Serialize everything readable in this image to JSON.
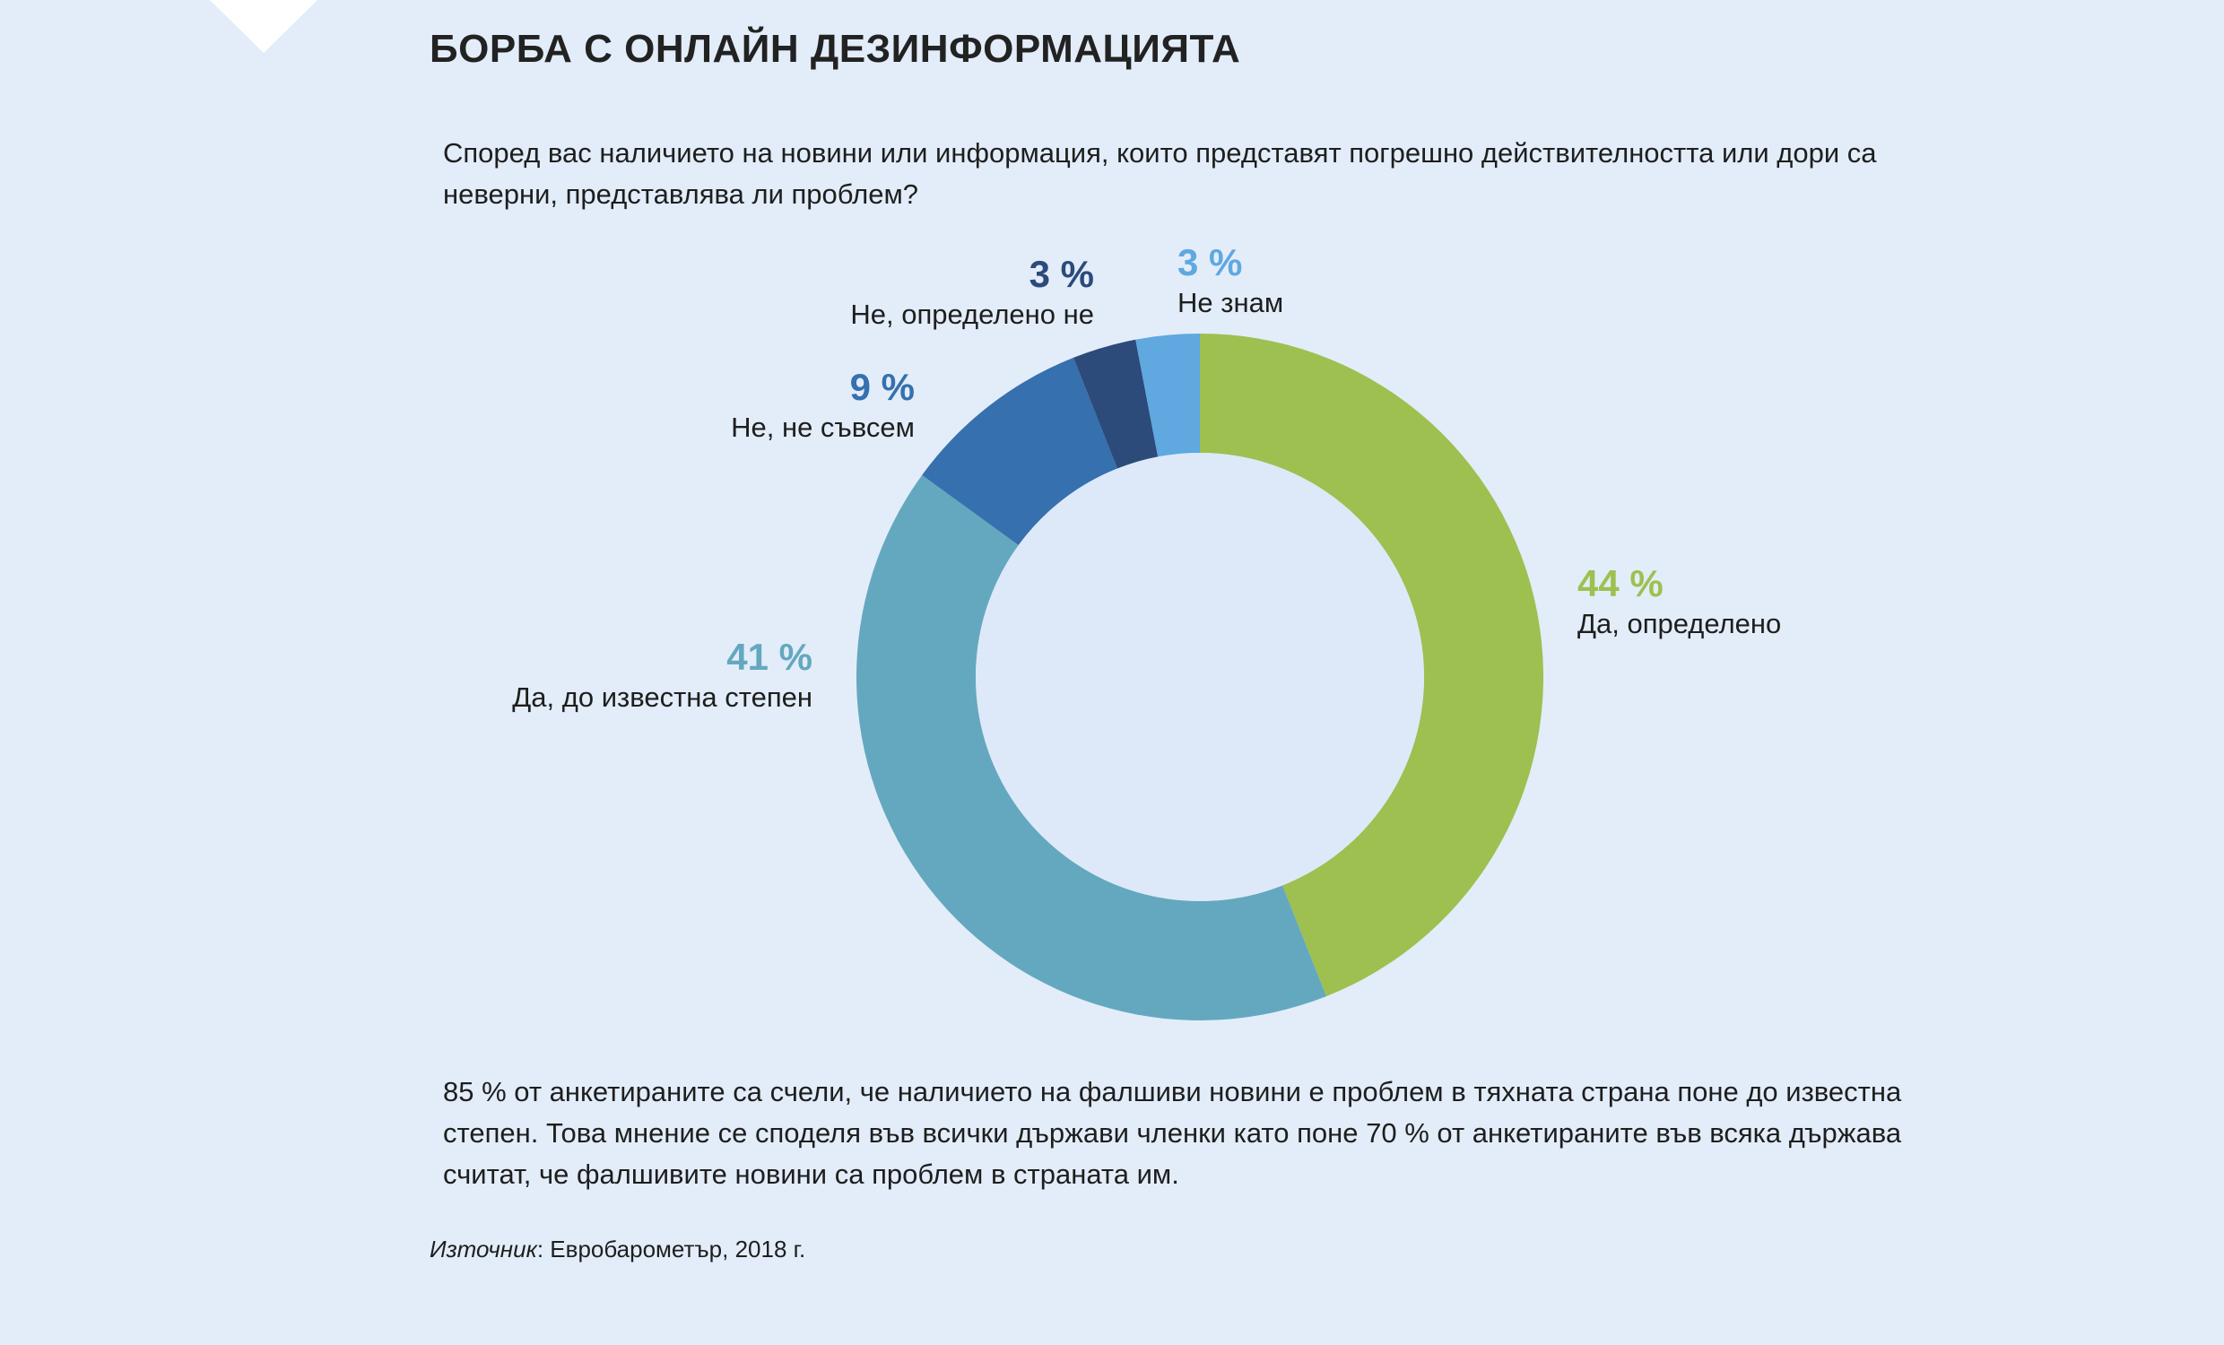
{
  "title": "БОРБА С ОНЛАЙН ДЕЗИНФОРМАЦИЯТА",
  "question": "Според вас наличието на новини или информация, които представят погрешно действителността или дори са неверни, представлява ли проблем?",
  "chart_data": {
    "type": "pie",
    "donut": true,
    "start": "top, clockwise",
    "slices": [
      {
        "label": "Да, определено",
        "value": 44,
        "value_label": "44 %",
        "color": "#9dc050"
      },
      {
        "label": "Да, до известна степен",
        "value": 41,
        "value_label": "41 %",
        "color": "#64a8bf"
      },
      {
        "label": "Не, не съвсем",
        "value": 9,
        "value_label": "9 %",
        "color": "#3670ae"
      },
      {
        "label": "Не, определено не",
        "value": 3,
        "value_label": "3 %",
        "color": "#2c4a7a"
      },
      {
        "label": "Не знам",
        "value": 3,
        "value_label": "3 %",
        "color": "#5fa8e0"
      }
    ]
  },
  "paragraph": "85 % от анкетираните са счели, че наличието на фалшиви новини е проблем в тяхната страна поне до известна степен. Това мнение се споделя във всички държави членки като поне 70 % от анкетираните във всяка държава считат, че фалшивите новини са проблем в страната им.",
  "source": {
    "label": "Източник",
    "text": ": Евробарометър, 2018 г."
  }
}
